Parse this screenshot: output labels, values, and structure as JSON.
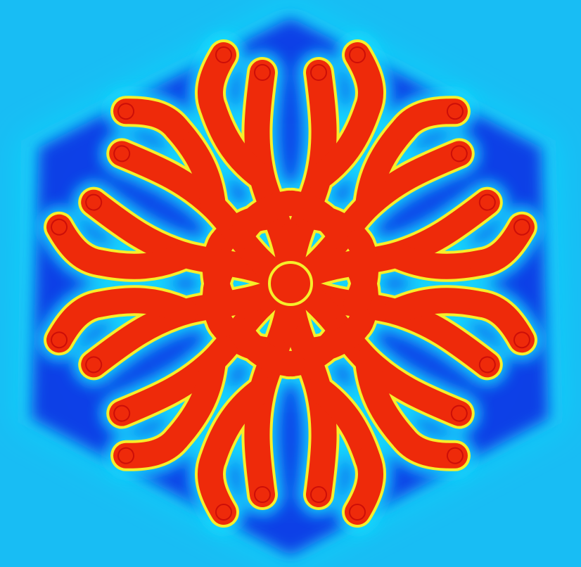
{
  "image": {
    "subject": "reaction-diffusion-pattern",
    "symmetry": 6,
    "colors": {
      "background": "#18bdf4",
      "field": "#0a3fe6",
      "field_inner": "#0b55ee",
      "halo": "#19e3ff",
      "edge": "#f6ef2a",
      "body": "#ee2a0a",
      "core": "#c40808"
    }
  }
}
